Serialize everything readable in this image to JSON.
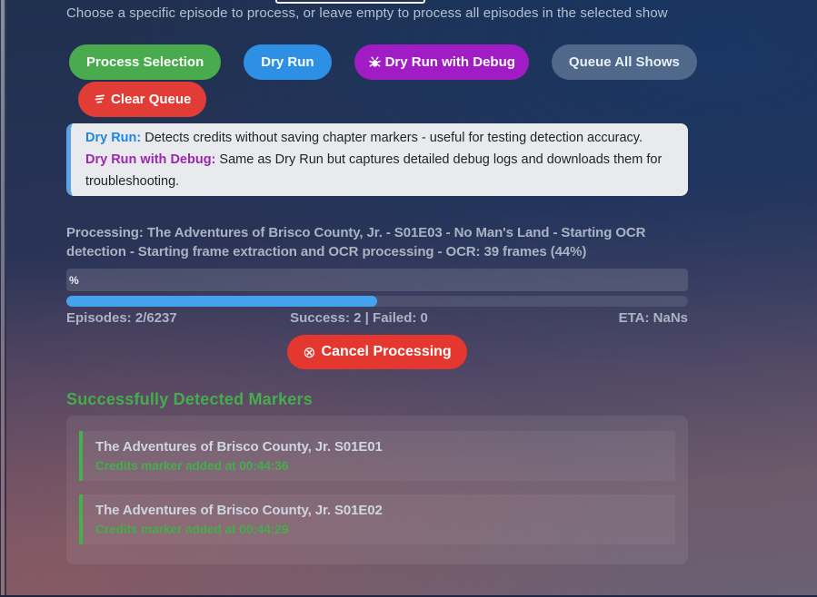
{
  "page": {
    "instruction": "Choose a specific episode to process, or leave empty to process all episodes in the selected show"
  },
  "buttons": {
    "process_selection": "Process Selection",
    "dry_run": "Dry Run",
    "dry_run_debug": "Dry Run with Debug",
    "queue_all": "Queue All Shows",
    "clear_queue": "Clear Queue",
    "cancel": "Cancel Processing",
    "cancel_icon": "⊗"
  },
  "info_box": {
    "line1_label": "Dry Run:",
    "line1_text": " Detects credits without saving chapter markers - useful for testing detection accuracy.",
    "line2_label": "Dry Run with Debug:",
    "line2_text": " Same as Dry Run but captures detailed debug logs and downloads them for troubleshooting."
  },
  "processing": {
    "status_text": "Processing: The Adventures of Brisco County, Jr. - S01E03 - No Man's Land - Starting OCR detection - Starting frame extraction and OCR processing - OCR: 39 frames (44%)",
    "percent_label": "%",
    "progress_fill_percent": 50,
    "episodes": "Episodes: 2/6237",
    "success_failed": "Success: 2 | Failed: 0",
    "eta": "ETA: NaNs"
  },
  "markers": {
    "heading": "Successfully Detected Markers",
    "items": [
      {
        "title": "The Adventures of Brisco County, Jr. S01E01",
        "subtitle": "Credits marker added at 00:44:36"
      },
      {
        "title": "The Adventures of Brisco County, Jr. S01E02",
        "subtitle": "Credits marker added at 00:44:29"
      }
    ]
  },
  "colors": {
    "accent_green": "#4aab4e",
    "accent_blue": "#2e90e5",
    "accent_purple": "#a21cc6",
    "accent_red": "#e23c37",
    "progress_blue": "#45a3ee",
    "marker_green": "#44b14c"
  }
}
